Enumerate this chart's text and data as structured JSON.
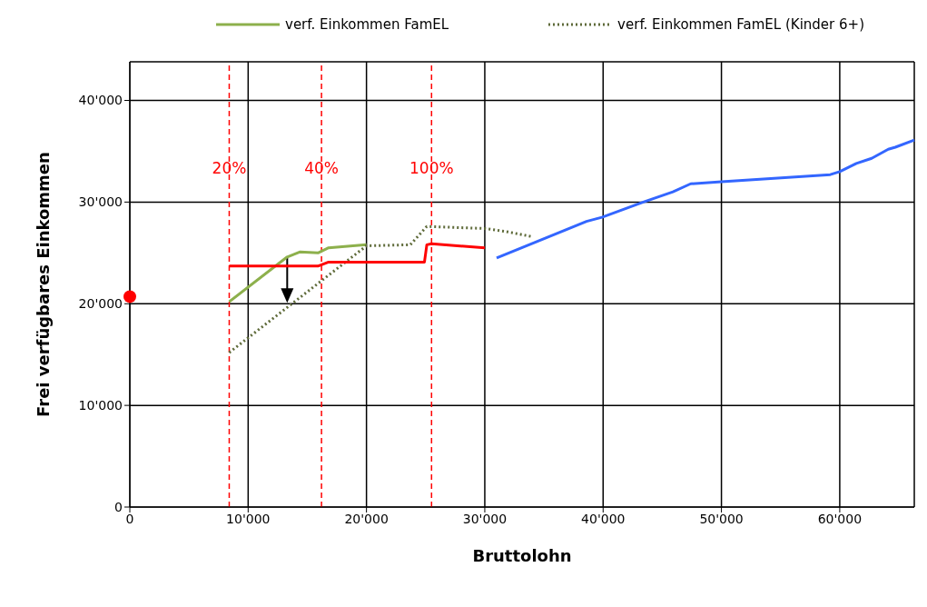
{
  "chart_data": {
    "type": "line",
    "xlabel": "Bruttolohn",
    "ylabel": "Frei verfügbares Einkommen",
    "xlim": [
      0,
      66300
    ],
    "ylim": [
      0,
      43800
    ],
    "xticks": [
      0,
      {
        "value": 10000,
        "label": "10'000"
      },
      {
        "value": 20000,
        "label": "20'000"
      },
      {
        "value": 30000,
        "label": "30'000"
      },
      {
        "value": 40000,
        "label": "40'000"
      },
      {
        "value": 50000,
        "label": "50'000"
      },
      {
        "value": 60000,
        "label": "60'000"
      }
    ],
    "yticks": [
      0,
      {
        "value": 10000,
        "label": "10'000"
      },
      {
        "value": 20000,
        "label": "20'000"
      },
      {
        "value": 30000,
        "label": "30'000"
      },
      {
        "value": 40000,
        "label": "40'000"
      }
    ],
    "grid": true,
    "legend": "top",
    "marker": "none",
    "series": [
      {
        "name": "verf. Einkommen FamEL",
        "color": "#8db04c",
        "line_style": "solid",
        "x": [
          8400,
          13300,
          14400,
          15900,
          16800,
          20000
        ],
        "values": [
          20200,
          24600,
          25100,
          25000,
          25500,
          25800
        ]
      },
      {
        "name": "verf. Einkommen FamEL (Kinder 6+)",
        "color": "#5f6b3a",
        "line_style": "dotted",
        "x": [
          8400,
          20000,
          23700,
          25100,
          30000,
          31800,
          34000
        ],
        "values": [
          15200,
          25700,
          25800,
          27600,
          27400,
          27100,
          26600
        ]
      },
      {
        "color": "#ff0000",
        "line_style": "solid",
        "x": [
          8400,
          15900,
          16800,
          24900,
          25100,
          25500,
          30000
        ],
        "values": [
          23700,
          23700,
          24100,
          24100,
          25800,
          25900,
          25500
        ]
      },
      {
        "color": "#3366ff",
        "line_style": "solid",
        "x": [
          31000,
          38600,
          39900,
          43400,
          45900,
          47400,
          50000,
          59200,
          60000,
          61400,
          62700,
          64100,
          64700,
          66300
        ],
        "values": [
          24500,
          28100,
          28500,
          30000,
          31000,
          31800,
          32000,
          32700,
          33000,
          33800,
          34300,
          35200,
          35400,
          36100
        ]
      },
      {
        "type": "scatter",
        "color": "#ff0000",
        "marker": "circle",
        "x": [
          0
        ],
        "values": [
          20700
        ]
      }
    ],
    "ref_lines": [
      {
        "axis": "x",
        "value": 8400,
        "color": "#ff0000",
        "line_style": "dashed"
      },
      {
        "axis": "x",
        "value": 16200,
        "color": "#ff0000",
        "line_style": "dashed"
      },
      {
        "axis": "x",
        "value": 25500,
        "color": "#ff0000",
        "line_style": "dashed"
      }
    ],
    "annotations": [
      {
        "text": "20%",
        "x": 8400
      },
      {
        "text": "40%",
        "x": 16200
      },
      {
        "text": "100%",
        "x": 25500
      }
    ]
  }
}
